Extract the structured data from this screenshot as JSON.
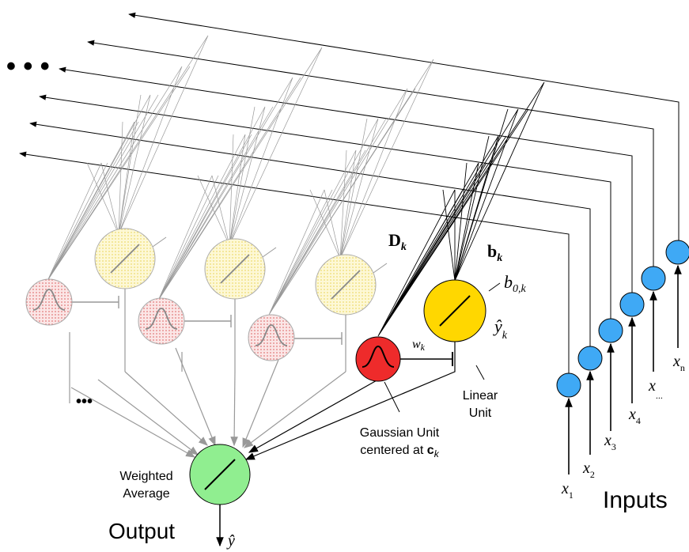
{
  "labels": {
    "ellipsis_top": "• • •",
    "ellipsis_left": "•••",
    "D_k_main": "D",
    "D_k_sub": "k",
    "b_k_main": "b",
    "b_k_sub": "k",
    "b0k_main": "b",
    "b0k_sub": "0,k",
    "yhat_k_main": "ŷ",
    "yhat_k_sub": "k",
    "wk_main": "w",
    "wk_sub": "k",
    "linear_unit_line1": "Linear",
    "linear_unit_line2": "Unit",
    "gaussian_line1": "Gaussian Unit",
    "gaussian_line2": "centered at ",
    "gaussian_c": "c",
    "gaussian_c_sub": "k",
    "weighted_line1": "Weighted",
    "weighted_line2": "Average",
    "output": "Output",
    "yhat": "ŷ",
    "inputs": "Inputs"
  },
  "inputs": [
    {
      "main": "x",
      "sub": "1"
    },
    {
      "main": "x",
      "sub": "2"
    },
    {
      "main": "x",
      "sub": "3"
    },
    {
      "main": "x",
      "sub": "4"
    },
    {
      "main": "x",
      "sub": "..."
    },
    {
      "main": "x",
      "sub": "n"
    }
  ],
  "colors": {
    "input_node": "#3fa9f5",
    "gaussian_active": "#ee2b2b",
    "linear_active": "#ffd700",
    "gaussian_faded": "#f6cccc",
    "linear_faded": "#fbf2b8",
    "output_node": "#90ee90"
  }
}
